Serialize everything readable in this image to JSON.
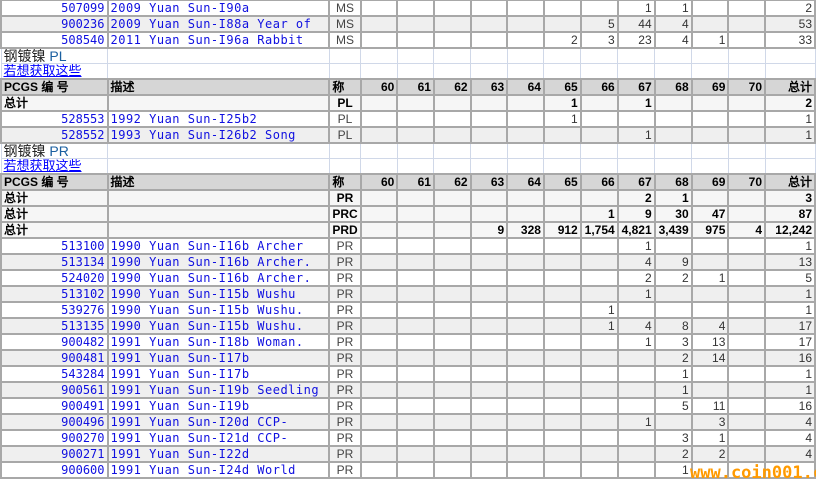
{
  "grades": [
    "60",
    "61",
    "62",
    "63",
    "64",
    "65",
    "66",
    "67",
    "68",
    "69",
    "70"
  ],
  "header": {
    "code": "PCGS 编 号",
    "desc": "描述",
    "des": "称",
    "total": "总计"
  },
  "total_label": "总计",
  "top_rows": [
    {
      "code": "507099",
      "desc": "2009 Yuan Sun-I90a",
      "des": "MS",
      "vals": [
        "",
        "",
        "",
        "",
        "",
        "",
        "",
        "1",
        "1",
        "",
        ""
      ],
      "total": "2"
    },
    {
      "code": "900236",
      "desc": "2009 Yuan Sun-I88a Year of",
      "des": "MS",
      "vals": [
        "",
        "",
        "",
        "",
        "",
        "",
        "5",
        "44",
        "4",
        "",
        ""
      ],
      "total": "53"
    },
    {
      "code": "508540",
      "desc": "2011 Yuan Sun-I96a Rabbit",
      "des": "MS",
      "vals": [
        "",
        "",
        "",
        "",
        "",
        "2",
        "3",
        "23",
        "4",
        "1",
        ""
      ],
      "total": "33"
    }
  ],
  "sections": [
    {
      "title": "钢镀镍",
      "suffix": "PL",
      "link": "若想获取这些",
      "totals": [
        {
          "des": "PL",
          "vals": [
            "",
            "",
            "",
            "",
            "",
            "1",
            "",
            "1",
            "",
            "",
            ""
          ],
          "total": "2"
        }
      ],
      "rows": [
        {
          "code": "528553",
          "desc": "1992 Yuan Sun-I25b2",
          "des": "PL",
          "vals": [
            "",
            "",
            "",
            "",
            "",
            "1",
            "",
            "",
            "",
            "",
            ""
          ],
          "total": "1"
        },
        {
          "code": "528552",
          "desc": "1993 Yuan Sun-I26b2 Song",
          "des": "PL",
          "vals": [
            "",
            "",
            "",
            "",
            "",
            "",
            "",
            "1",
            "",
            "",
            ""
          ],
          "total": "1"
        }
      ]
    },
    {
      "title": "钢镀镍",
      "suffix": "PR",
      "link": "若想获取这些",
      "totals": [
        {
          "des": "PR",
          "vals": [
            "",
            "",
            "",
            "",
            "",
            "",
            "",
            "2",
            "1",
            "",
            ""
          ],
          "total": "3"
        },
        {
          "des": "PRC",
          "vals": [
            "",
            "",
            "",
            "",
            "",
            "",
            "1",
            "9",
            "30",
            "47",
            ""
          ],
          "total": "87"
        },
        {
          "des": "PRD",
          "vals": [
            "",
            "",
            "",
            "9",
            "328",
            "912",
            "1,754",
            "4,821",
            "3,439",
            "975",
            "4"
          ],
          "total": "12,242"
        }
      ],
      "rows": [
        {
          "code": "513100",
          "desc": "1990 Yuan Sun-I16b Archer",
          "des": "PR",
          "vals": [
            "",
            "",
            "",
            "",
            "",
            "",
            "",
            "1",
            "",
            "",
            ""
          ],
          "total": "1"
        },
        {
          "code": "513134",
          "desc": "1990 Yuan Sun-I16b Archer.",
          "des": "PR",
          "vals": [
            "",
            "",
            "",
            "",
            "",
            "",
            "",
            "4",
            "9",
            "",
            ""
          ],
          "total": "13"
        },
        {
          "code": "524020",
          "desc": "1990 Yuan Sun-I16b Archer.",
          "des": "PR",
          "vals": [
            "",
            "",
            "",
            "",
            "",
            "",
            "",
            "2",
            "2",
            "1",
            ""
          ],
          "total": "5"
        },
        {
          "code": "513102",
          "desc": "1990 Yuan Sun-I15b Wushu",
          "des": "PR",
          "vals": [
            "",
            "",
            "",
            "",
            "",
            "",
            "",
            "1",
            "",
            "",
            ""
          ],
          "total": "1"
        },
        {
          "code": "539276",
          "desc": "1990 Yuan Sun-I15b Wushu.",
          "des": "PR",
          "vals": [
            "",
            "",
            "",
            "",
            "",
            "",
            "1",
            "",
            "",
            "",
            ""
          ],
          "total": "1"
        },
        {
          "code": "513135",
          "desc": "1990 Yuan Sun-I15b Wushu.",
          "des": "PR",
          "vals": [
            "",
            "",
            "",
            "",
            "",
            "",
            "1",
            "4",
            "8",
            "4",
            ""
          ],
          "total": "17"
        },
        {
          "code": "900482",
          "desc": "1991 Yuan Sun-I18b Woman.",
          "des": "PR",
          "vals": [
            "",
            "",
            "",
            "",
            "",
            "",
            "",
            "1",
            "3",
            "13",
            ""
          ],
          "total": "17"
        },
        {
          "code": "900481",
          "desc": "1991 Yuan Sun-I17b",
          "des": "PR",
          "vals": [
            "",
            "",
            "",
            "",
            "",
            "",
            "",
            "",
            "2",
            "14",
            ""
          ],
          "total": "16"
        },
        {
          "code": "543284",
          "desc": "1991 Yuan Sun-I17b",
          "des": "PR",
          "vals": [
            "",
            "",
            "",
            "",
            "",
            "",
            "",
            "",
            "1",
            "",
            ""
          ],
          "total": "1"
        },
        {
          "code": "900561",
          "desc": "1991 Yuan Sun-I19b Seedling",
          "des": "PR",
          "vals": [
            "",
            "",
            "",
            "",
            "",
            "",
            "",
            "",
            "1",
            "",
            ""
          ],
          "total": "1"
        },
        {
          "code": "900491",
          "desc": "1991 Yuan Sun-I19b",
          "des": "PR",
          "vals": [
            "",
            "",
            "",
            "",
            "",
            "",
            "",
            "",
            "5",
            "11",
            ""
          ],
          "total": "16"
        },
        {
          "code": "900496",
          "desc": "1991 Yuan Sun-I20d CCP-",
          "des": "PR",
          "vals": [
            "",
            "",
            "",
            "",
            "",
            "",
            "",
            "1",
            "",
            "3",
            ""
          ],
          "total": "4"
        },
        {
          "code": "900270",
          "desc": "1991 Yuan Sun-I21d CCP-",
          "des": "PR",
          "vals": [
            "",
            "",
            "",
            "",
            "",
            "",
            "",
            "",
            "3",
            "1",
            ""
          ],
          "total": "4"
        },
        {
          "code": "900271",
          "desc": "1991 Yuan Sun-I22d",
          "des": "PR",
          "vals": [
            "",
            "",
            "",
            "",
            "",
            "",
            "",
            "",
            "2",
            "2",
            ""
          ],
          "total": "4"
        },
        {
          "code": "900600",
          "desc": "1991 Yuan Sun-I24d World",
          "des": "PR",
          "vals": [
            "",
            "",
            "",
            "",
            "",
            "",
            "",
            "",
            "1",
            "",
            ""
          ],
          "total": ""
        }
      ]
    }
  ],
  "watermark": "www.coin001.com"
}
